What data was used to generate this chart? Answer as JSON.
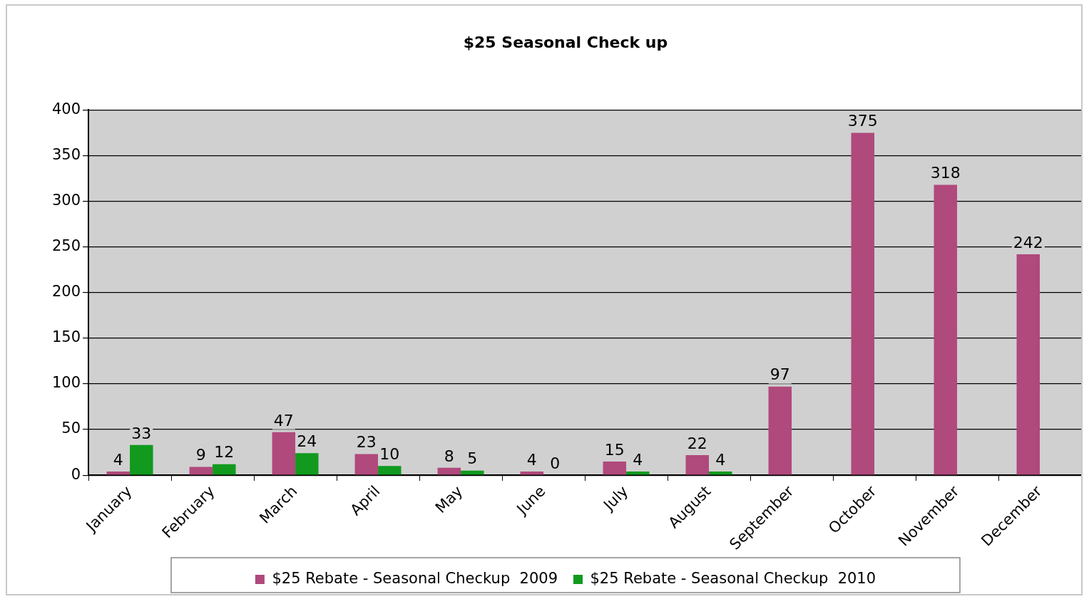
{
  "chart_data": {
    "type": "bar",
    "title": "$25 Seasonal Check up",
    "categories": [
      "January",
      "February",
      "March",
      "April",
      "May",
      "June",
      "July",
      "August",
      "September",
      "October",
      "November",
      "December"
    ],
    "series": [
      {
        "name": "$25 Rebate - Seasonal Checkup  2009",
        "color": "#b0497c",
        "values": [
          4,
          9,
          47,
          23,
          8,
          4,
          15,
          22,
          97,
          375,
          318,
          242
        ]
      },
      {
        "name": "$25 Rebate - Seasonal Checkup  2010",
        "color": "#119a1e",
        "values": [
          33,
          12,
          24,
          10,
          5,
          0,
          4,
          4,
          null,
          null,
          null,
          null
        ]
      }
    ],
    "ylim": [
      0,
      400
    ],
    "yticks": [
      0,
      50,
      100,
      150,
      200,
      250,
      300,
      350,
      400
    ],
    "grid": "y",
    "legend": "bottom",
    "data_labels": true
  }
}
